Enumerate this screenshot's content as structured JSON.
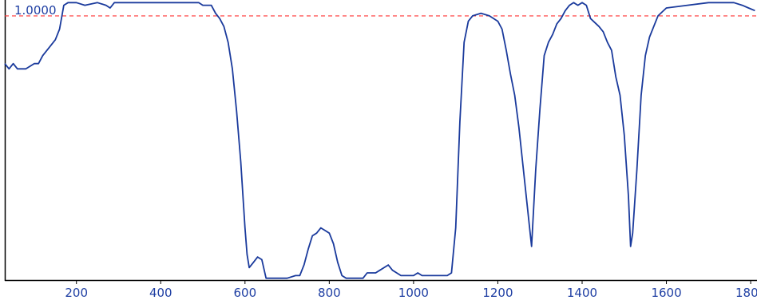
{
  "chart_data": {
    "type": "line",
    "title": "",
    "xlabel": "",
    "ylabel": "",
    "xlim": [
      30,
      1815
    ],
    "ylim": [
      0.0,
      1.06
    ],
    "x_ticks": [
      200,
      400,
      600,
      800,
      1000,
      1200,
      1400,
      1600,
      1800
    ],
    "x_tick_labels": [
      "200",
      "400",
      "600",
      "800",
      "1000",
      "1200",
      "1400",
      "1600",
      "1800"
    ],
    "reference_line": {
      "value": 1.0,
      "label": "1.0000",
      "color": "#ff3333",
      "style": "dashed"
    },
    "grid": false,
    "legend": "none",
    "series": [
      {
        "color": "#1a3a9c",
        "points": [
          [
            30,
            0.82
          ],
          [
            40,
            0.8
          ],
          [
            50,
            0.82
          ],
          [
            60,
            0.8
          ],
          [
            80,
            0.8
          ],
          [
            100,
            0.82
          ],
          [
            110,
            0.82
          ],
          [
            120,
            0.85
          ],
          [
            135,
            0.88
          ],
          [
            150,
            0.91
          ],
          [
            160,
            0.95
          ],
          [
            170,
            1.04
          ],
          [
            180,
            1.05
          ],
          [
            200,
            1.05
          ],
          [
            220,
            1.04
          ],
          [
            250,
            1.05
          ],
          [
            270,
            1.04
          ],
          [
            280,
            1.03
          ],
          [
            290,
            1.05
          ],
          [
            320,
            1.05
          ],
          [
            400,
            1.05
          ],
          [
            460,
            1.05
          ],
          [
            490,
            1.05
          ],
          [
            500,
            1.04
          ],
          [
            520,
            1.04
          ],
          [
            530,
            1.01
          ],
          [
            540,
            0.99
          ],
          [
            550,
            0.96
          ],
          [
            560,
            0.9
          ],
          [
            570,
            0.8
          ],
          [
            580,
            0.64
          ],
          [
            590,
            0.45
          ],
          [
            600,
            0.2
          ],
          [
            605,
            0.1
          ],
          [
            610,
            0.05
          ],
          [
            620,
            0.07
          ],
          [
            630,
            0.09
          ],
          [
            640,
            0.08
          ],
          [
            650,
            0.01
          ],
          [
            660,
            0.01
          ],
          [
            700,
            0.01
          ],
          [
            720,
            0.02
          ],
          [
            730,
            0.02
          ],
          [
            740,
            0.06
          ],
          [
            750,
            0.12
          ],
          [
            760,
            0.17
          ],
          [
            770,
            0.18
          ],
          [
            780,
            0.2
          ],
          [
            790,
            0.19
          ],
          [
            800,
            0.18
          ],
          [
            810,
            0.14
          ],
          [
            820,
            0.07
          ],
          [
            830,
            0.02
          ],
          [
            840,
            0.01
          ],
          [
            880,
            0.01
          ],
          [
            890,
            0.03
          ],
          [
            900,
            0.03
          ],
          [
            910,
            0.03
          ],
          [
            920,
            0.04
          ],
          [
            930,
            0.05
          ],
          [
            940,
            0.06
          ],
          [
            950,
            0.04
          ],
          [
            960,
            0.03
          ],
          [
            970,
            0.02
          ],
          [
            990,
            0.02
          ],
          [
            1000,
            0.02
          ],
          [
            1010,
            0.03
          ],
          [
            1020,
            0.02
          ],
          [
            1060,
            0.02
          ],
          [
            1080,
            0.02
          ],
          [
            1090,
            0.03
          ],
          [
            1100,
            0.2
          ],
          [
            1110,
            0.6
          ],
          [
            1120,
            0.9
          ],
          [
            1130,
            0.98
          ],
          [
            1140,
            1.0
          ],
          [
            1160,
            1.01
          ],
          [
            1180,
            1.0
          ],
          [
            1200,
            0.98
          ],
          [
            1210,
            0.95
          ],
          [
            1220,
            0.87
          ],
          [
            1230,
            0.78
          ],
          [
            1240,
            0.7
          ],
          [
            1250,
            0.58
          ],
          [
            1260,
            0.43
          ],
          [
            1270,
            0.28
          ],
          [
            1280,
            0.13
          ],
          [
            1290,
            0.42
          ],
          [
            1300,
            0.65
          ],
          [
            1310,
            0.85
          ],
          [
            1320,
            0.9
          ],
          [
            1330,
            0.93
          ],
          [
            1340,
            0.97
          ],
          [
            1350,
            0.99
          ],
          [
            1360,
            1.02
          ],
          [
            1370,
            1.04
          ],
          [
            1380,
            1.05
          ],
          [
            1390,
            1.04
          ],
          [
            1400,
            1.05
          ],
          [
            1410,
            1.04
          ],
          [
            1420,
            0.99
          ],
          [
            1440,
            0.96
          ],
          [
            1450,
            0.94
          ],
          [
            1460,
            0.9
          ],
          [
            1470,
            0.87
          ],
          [
            1480,
            0.77
          ],
          [
            1490,
            0.7
          ],
          [
            1500,
            0.55
          ],
          [
            1510,
            0.32
          ],
          [
            1515,
            0.13
          ],
          [
            1520,
            0.18
          ],
          [
            1530,
            0.42
          ],
          [
            1540,
            0.7
          ],
          [
            1550,
            0.85
          ],
          [
            1560,
            0.92
          ],
          [
            1570,
            0.96
          ],
          [
            1580,
            1.0
          ],
          [
            1600,
            1.03
          ],
          [
            1650,
            1.04
          ],
          [
            1700,
            1.05
          ],
          [
            1760,
            1.05
          ],
          [
            1780,
            1.04
          ],
          [
            1795,
            1.03
          ],
          [
            1810,
            1.02
          ]
        ]
      }
    ]
  }
}
